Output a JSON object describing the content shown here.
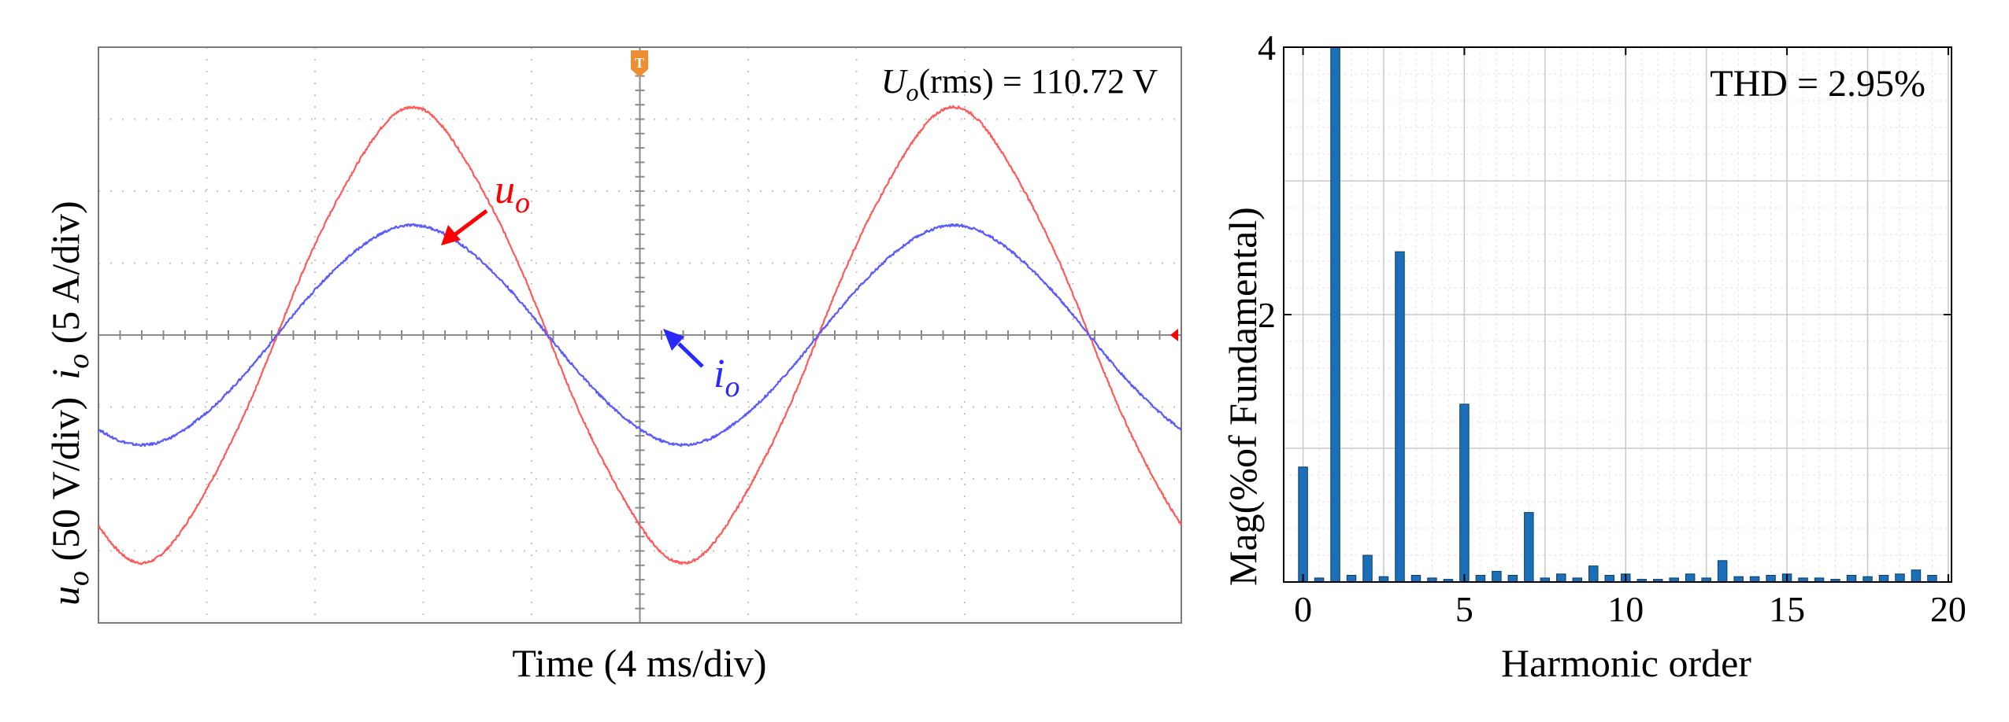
{
  "colors": {
    "voltage": "#ff5a5a",
    "current": "#5a5aff",
    "bar_fill": "#1a6fb8",
    "bar_edge": "#0b3c66",
    "trigger": "#f08c32",
    "marker": "#ff0000",
    "voltage_label": "#ff0000",
    "current_label": "#2828ff",
    "axis": "#000000",
    "grid": "#c4c4c4"
  },
  "scope": {
    "trigger_icon": "trigger-marker-icon",
    "ground_icon": "ground-level-marker-icon",
    "readout": {
      "symbol": "U",
      "subscript": "o",
      "rest": "(rms) = 110.72 V"
    },
    "voltage_label": {
      "symbol": "u",
      "subscript": "o"
    },
    "current_label": {
      "symbol": "i",
      "subscript": "o"
    },
    "ylabel_voltage": {
      "symbol": "u",
      "subscript": "o",
      "rest": " (50 V/div)"
    },
    "ylabel_current": {
      "symbol": "i",
      "subscript": "o",
      "rest": " (5 A/div)"
    },
    "xlabel": "Time (4 ms/div)"
  },
  "chart_data": [
    {
      "type": "line",
      "title": "",
      "xlabel": "Time (4 ms/div)",
      "ylabel": "uo (50 V/div)  io (5 A/div)",
      "grid": true,
      "x_divisions": 10,
      "y_divisions": 8,
      "xlim_div": [
        0,
        10
      ],
      "ylim_div": [
        -4,
        4
      ],
      "series": [
        {
          "name": "uo",
          "unit": "V",
          "scale_per_div": 50,
          "amplitude_div": 3.05,
          "period_div": 5.0,
          "phase_zero_crossing_div": 1.65,
          "third_harmonic_pct": 2.5,
          "fifth_harmonic_pct": 1.4,
          "end_div": 10.0
        },
        {
          "name": "io",
          "unit": "A",
          "scale_per_div": 5,
          "amplitude_div": 1.5,
          "period_div": 5.0,
          "phase_zero_crossing_div": 1.65,
          "third_harmonic_pct": 1.2,
          "fifth_harmonic_pct": 0.6,
          "end_div": 10.0
        }
      ],
      "annotations": [
        "Uo(rms) = 110.72 V",
        "uo",
        "io"
      ]
    },
    {
      "type": "bar",
      "title": "",
      "xlabel": "Harmonic order",
      "ylabel": "Mag(%of Fundamental)",
      "annotation": "THD = 2.95%",
      "xlim": [
        -0.6,
        20.1
      ],
      "ylim": [
        0,
        4
      ],
      "xticks": [
        0,
        5,
        10,
        15,
        20
      ],
      "yticks": [
        2,
        4
      ],
      "grid": true,
      "bar_width": 0.28,
      "x": [
        0,
        0.5,
        1,
        1.5,
        2,
        2.5,
        3,
        3.5,
        4,
        4.5,
        5,
        5.5,
        6,
        6.5,
        7,
        7.5,
        8,
        8.5,
        9,
        9.5,
        10,
        10.5,
        11,
        11.5,
        12,
        12.5,
        13,
        13.5,
        14,
        14.5,
        15,
        15.5,
        16,
        16.5,
        17,
        17.5,
        18,
        18.5,
        19,
        19.5
      ],
      "values": [
        0.86,
        0.03,
        4.0,
        0.05,
        0.2,
        0.04,
        2.47,
        0.05,
        0.03,
        0.02,
        1.33,
        0.05,
        0.08,
        0.05,
        0.52,
        0.03,
        0.06,
        0.03,
        0.12,
        0.05,
        0.06,
        0.02,
        0.02,
        0.03,
        0.06,
        0.03,
        0.16,
        0.04,
        0.04,
        0.05,
        0.06,
        0.03,
        0.03,
        0.02,
        0.05,
        0.04,
        0.05,
        0.06,
        0.09,
        0.05
      ]
    }
  ]
}
